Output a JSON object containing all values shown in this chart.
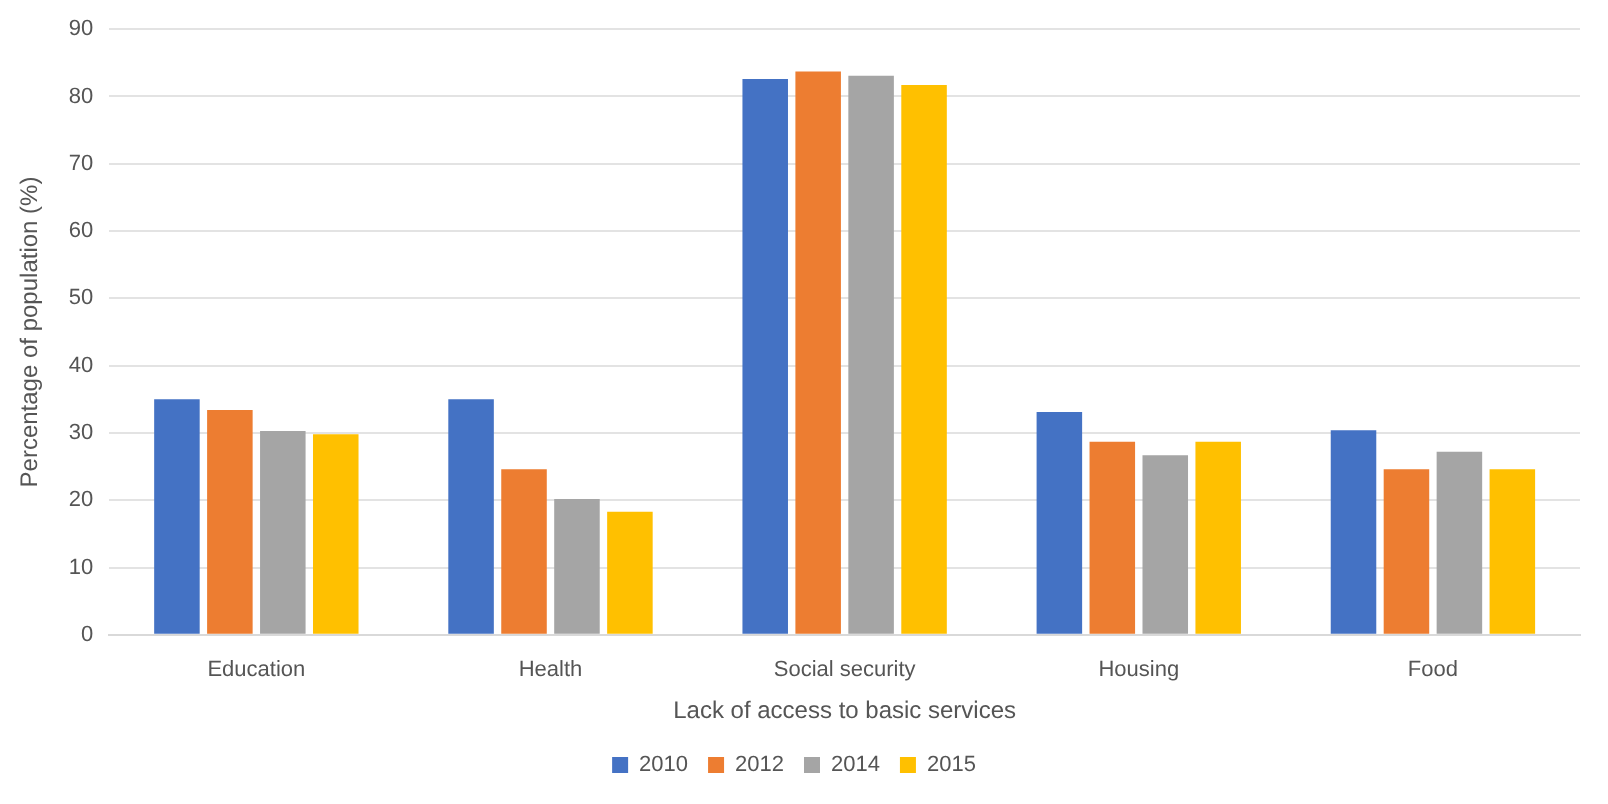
{
  "chart_data": {
    "type": "bar",
    "xlabel": "Lack of access to basic services",
    "ylabel": "Percentage of population (%)",
    "categories": [
      "Education",
      "Health",
      "Social security",
      "Housing",
      "Food"
    ],
    "series": [
      {
        "name": "2010",
        "color": "#4472c4",
        "values": [
          35,
          35,
          82.6,
          33.1,
          30.4
        ]
      },
      {
        "name": "2012",
        "color": "#ed7d31",
        "values": [
          33.4,
          24.6,
          83.7,
          28.7,
          24.6
        ]
      },
      {
        "name": "2014",
        "color": "#a5a5a5",
        "values": [
          30.3,
          20.2,
          83.1,
          26.7,
          27.2
        ]
      },
      {
        "name": "2015",
        "color": "#ffc000",
        "values": [
          29.8,
          18.3,
          81.7,
          28.7,
          24.6
        ]
      }
    ],
    "ylim": [
      0,
      90
    ],
    "yticks": [
      0,
      10,
      20,
      30,
      40,
      50,
      60,
      70,
      80,
      90
    ],
    "grid": "y",
    "legend": "bottom"
  }
}
